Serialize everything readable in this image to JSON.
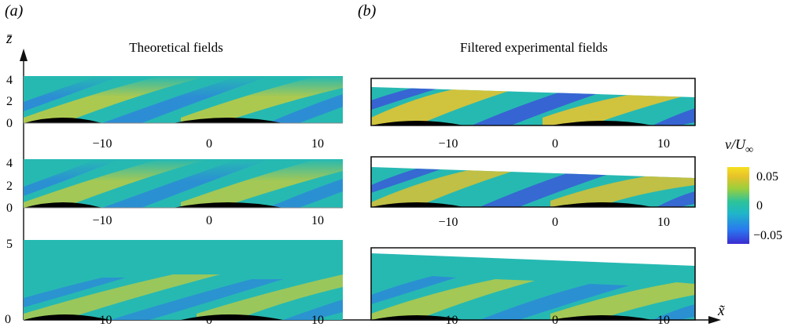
{
  "panel_labels": {
    "a": "(a)",
    "b": "(b)"
  },
  "titles": {
    "left": "Theoretical fields",
    "right": "Filtered experimental fields"
  },
  "axis_labels": {
    "z": "z̄",
    "x": "x̃"
  },
  "z_ticks": {
    "row1": [
      "4",
      "2",
      "0"
    ],
    "row2": [
      "4",
      "2",
      "0"
    ],
    "row3": [
      "5",
      "0"
    ]
  },
  "x_ticks": [
    "−10",
    "0",
    "10"
  ],
  "colorbar": {
    "title_main": "v/U",
    "title_sub": "∞",
    "ticks": [
      "0.05",
      "0",
      "−0.05"
    ],
    "colors": [
      "#3a2bd0",
      "#2a78f0",
      "#1fb6c8",
      "#2cc39a",
      "#9ccf3c",
      "#e6c22a",
      "#f6e020"
    ]
  },
  "field_colors": {
    "base": "#26b9b2",
    "warm": "#d9cf2f",
    "warm_strong": "#eec52a",
    "cool": "#2e7fe0",
    "cool_strong": "#3b56d9",
    "hump": "#000000"
  }
}
